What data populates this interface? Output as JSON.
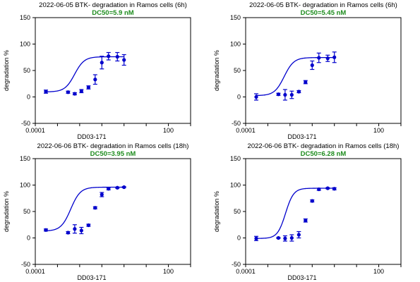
{
  "chart_data": [
    {
      "type": "scatter",
      "title": "2022-06-05   BTK- degradation in Ramos cells  (6h)",
      "subtitle": "DC50=5.9  nM",
      "xlabel": "DD03-171",
      "ylabel": "degradation %",
      "xscale": "log",
      "xlim": [
        0.0001,
        1000
      ],
      "ylim": [
        -50,
        150
      ],
      "xticks": [
        "0.0001",
        "",
        "",
        "",
        "",
        "",
        "100",
        ""
      ],
      "yticks": [
        "-50",
        "0",
        "50",
        "100",
        "150"
      ],
      "series": [
        {
          "x": [
            0.0003,
            0.003,
            0.006,
            0.012,
            0.025,
            0.05,
            0.1,
            0.2,
            0.5,
            1
          ],
          "y": [
            10,
            9,
            6,
            11,
            18,
            33,
            65,
            77,
            76,
            70
          ],
          "err": [
            3,
            2,
            2,
            3,
            3,
            9,
            12,
            7,
            8,
            10
          ],
          "fit": {
            "bottom": 9.5,
            "top": 76,
            "ec50": 0.0059,
            "hill": 2.0
          }
        }
      ],
      "colors": {
        "series": "#0000cc",
        "subtitle": "#1e8c1e"
      }
    },
    {
      "type": "scatter",
      "title": "2022-06-05   BTK- degradation in Ramos cells  (6h)",
      "subtitle": "DC50=5.45  nM",
      "xlabel": "DD03-171",
      "ylabel": "degradation %",
      "xscale": "log",
      "xlim": [
        0.0001,
        1000
      ],
      "ylim": [
        -50,
        150
      ],
      "xticks": [
        "0.0001",
        "",
        "",
        "",
        "",
        "",
        "100",
        ""
      ],
      "yticks": [
        "-50",
        "0",
        "50",
        "100",
        "150"
      ],
      "series": [
        {
          "x": [
            0.0003,
            0.003,
            0.006,
            0.012,
            0.025,
            0.05,
            0.1,
            0.2,
            0.5,
            1
          ],
          "y": [
            0,
            5,
            4,
            4,
            10,
            28,
            60,
            74,
            73,
            75
          ],
          "err": [
            6,
            2,
            10,
            7,
            2,
            3,
            8,
            9,
            6,
            10
          ],
          "fit": {
            "bottom": 2.5,
            "top": 74.5,
            "ec50": 0.00545,
            "hill": 2.0
          }
        }
      ],
      "colors": {
        "series": "#0000cc",
        "subtitle": "#1e8c1e"
      }
    },
    {
      "type": "scatter",
      "title": "2022-06-06   BTK- degradation in Ramos cells  (18h)",
      "subtitle": "DC50=3.95  nM",
      "xlabel": "DD03-171",
      "ylabel": "degradation %",
      "xscale": "log",
      "xlim": [
        0.0001,
        1000
      ],
      "ylim": [
        -50,
        150
      ],
      "xticks": [
        "0.0001",
        "",
        "",
        "",
        "",
        "",
        "100",
        ""
      ],
      "yticks": [
        "-50",
        "0",
        "50",
        "100",
        "150"
      ],
      "series": [
        {
          "x": [
            0.0003,
            0.003,
            0.006,
            0.012,
            0.025,
            0.05,
            0.1,
            0.2,
            0.5,
            1
          ],
          "y": [
            15,
            10,
            17,
            14,
            24,
            57,
            82,
            93,
            95,
            96
          ],
          "err": [
            2,
            2,
            8,
            6,
            2,
            2,
            4,
            2,
            1,
            1
          ],
          "fit": {
            "bottom": 13,
            "top": 96,
            "ec50": 0.00395,
            "hill": 2.0
          }
        }
      ],
      "colors": {
        "series": "#0000cc",
        "subtitle": "#1e8c1e"
      }
    },
    {
      "type": "scatter",
      "title": "2022-06-06   BTK- degradation in Ramos cells  (18h)",
      "subtitle": "DC50=6.28  nM",
      "xlabel": "DD03-171",
      "ylabel": "degradation %",
      "xscale": "log",
      "xlim": [
        0.0001,
        1000
      ],
      "ylim": [
        -50,
        150
      ],
      "xticks": [
        "0.0001",
        "",
        "",
        "",
        "",
        "",
        "100",
        ""
      ],
      "yticks": [
        "-50",
        "0",
        "50",
        "100",
        "150"
      ],
      "series": [
        {
          "x": [
            0.0003,
            0.003,
            0.006,
            0.012,
            0.025,
            0.05,
            0.1,
            0.2,
            0.5,
            1
          ],
          "y": [
            -1,
            0,
            -1,
            0,
            6,
            33,
            70,
            92,
            94,
            93
          ],
          "err": [
            4,
            1,
            5,
            6,
            6,
            3,
            2,
            2,
            1,
            2
          ],
          "fit": {
            "bottom": -1,
            "top": 94,
            "ec50": 0.00628,
            "hill": 2.4
          }
        }
      ],
      "colors": {
        "series": "#0000cc",
        "subtitle": "#1e8c1e"
      }
    }
  ]
}
